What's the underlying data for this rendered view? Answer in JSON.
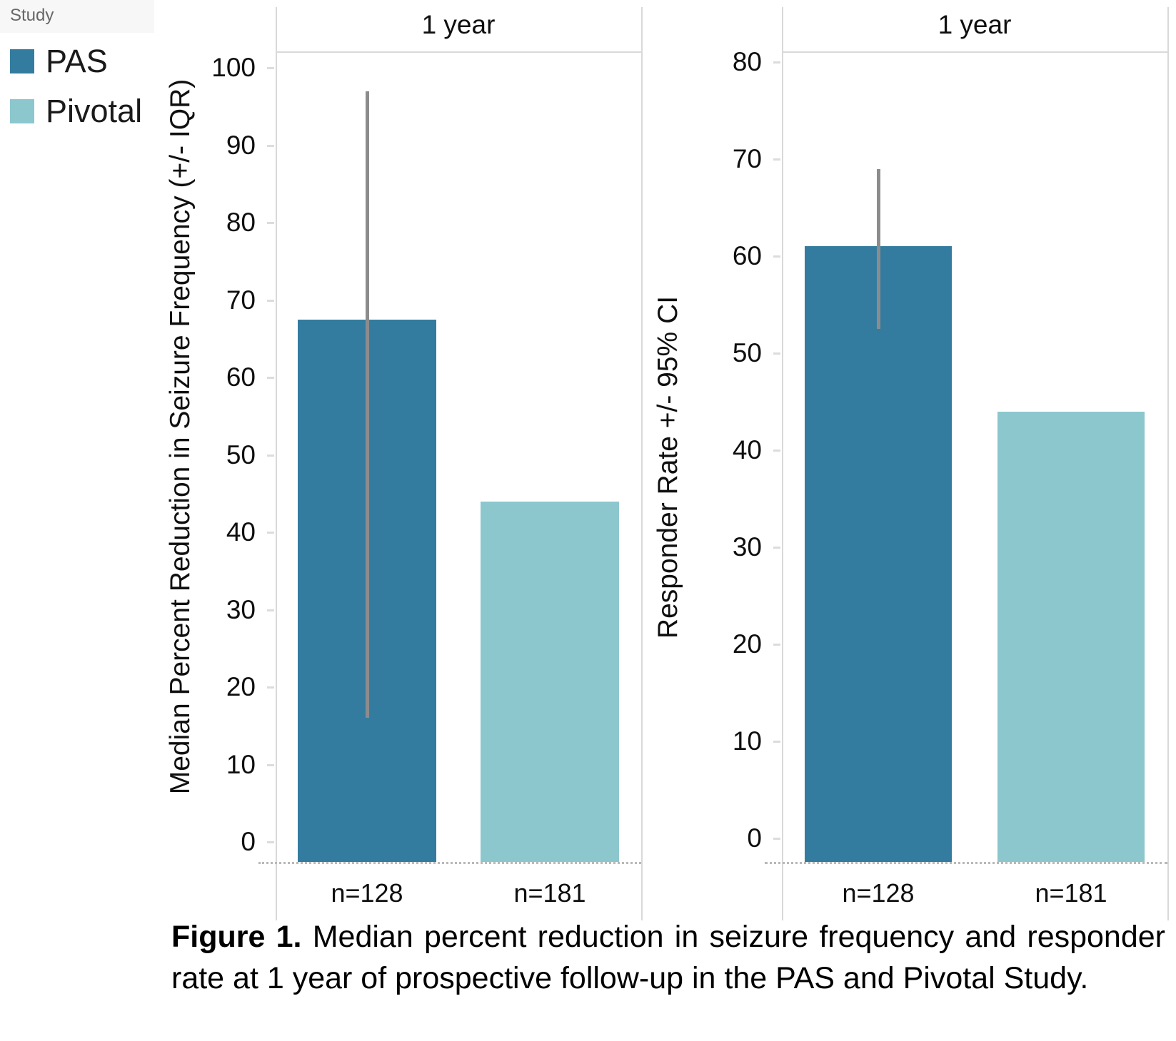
{
  "legend": {
    "title": "Study",
    "items": [
      {
        "label": "PAS",
        "color": "#337CA0"
      },
      {
        "label": "Pivotal",
        "color": "#8CC7CE"
      }
    ]
  },
  "chart_data": [
    {
      "type": "bar",
      "panel_title": "1 year",
      "ylabel": "Median Percent Reduction in Seizure Frequency (+/- IQR)",
      "ylim": [
        0,
        100
      ],
      "ytick_step": 10,
      "grid": false,
      "legend_position": "top-left-outside",
      "categories": [
        "n=128",
        "n=181"
      ],
      "bars": [
        {
          "study": "PAS",
          "x_label": "n=128",
          "value": 67.5,
          "error_low": 16,
          "error_high": 97
        },
        {
          "study": "Pivotal",
          "x_label": "n=181",
          "value": 44
        }
      ]
    },
    {
      "type": "bar",
      "panel_title": "1 year",
      "ylabel": "Responder Rate +/- 95% CI",
      "ylim": [
        0,
        80
      ],
      "ytick_step": 10,
      "grid": false,
      "legend_position": "top-left-outside",
      "categories": [
        "n=128",
        "n=181"
      ],
      "bars": [
        {
          "study": "PAS",
          "x_label": "n=128",
          "value": 61,
          "error_low": 52.5,
          "error_high": 69
        },
        {
          "study": "Pivotal",
          "x_label": "n=181",
          "value": 44
        }
      ]
    }
  ],
  "figure_caption": {
    "label": "Figure 1.",
    "text": "Median percent reduction in seizure frequency and responder rate at 1 year of prospective follow-up in the PAS and Pivotal Study."
  }
}
